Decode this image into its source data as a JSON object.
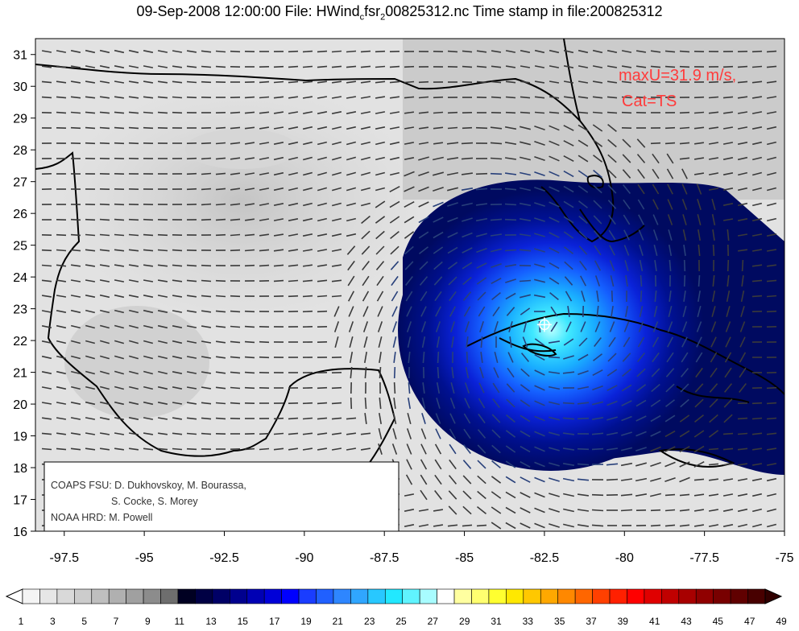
{
  "title": {
    "prefix": "09-Sep-2008 12:00:00 File: HWind",
    "sub": "c",
    "mid": "fsr",
    "sub2": "2",
    "suffix": "00825312.nc Time stamp in file:200825312"
  },
  "map": {
    "lon_ticks": [
      "-97.5",
      "-95",
      "-92.5",
      "-90",
      "-87.5",
      "-85",
      "-82.5",
      "-80",
      "-77.5",
      "-75"
    ],
    "lon_values": [
      -97.5,
      -95,
      -92.5,
      -90,
      -87.5,
      -85,
      -82.5,
      -80,
      -77.5,
      -75
    ],
    "lat_ticks": [
      "31",
      "30",
      "29",
      "28",
      "27",
      "26",
      "25",
      "24",
      "23",
      "22",
      "21",
      "20",
      "19",
      "18",
      "17",
      "16"
    ],
    "lat_values": [
      31,
      30,
      29,
      28,
      27,
      26,
      25,
      24,
      23,
      22,
      21,
      20,
      19,
      18,
      17,
      16
    ],
    "lon_range": [
      -98.4,
      -75
    ],
    "lat_range": [
      16,
      31.5
    ],
    "storm_center": {
      "lon": -82.5,
      "lat": 22.5
    },
    "stats": [
      "maxU=31.9 m/s,",
      "Cat=TS"
    ]
  },
  "credits": [
    "COAPS FSU: D. Dukhovskoy, M. Bourassa,",
    "S. Cocke, S. Morey",
    "NOAA HRD:  M. Powell"
  ],
  "colorbar": {
    "labels": [
      "1",
      "3",
      "5",
      "7",
      "9",
      "11",
      "13",
      "15",
      "17",
      "19",
      "21",
      "23",
      "25",
      "27",
      "29",
      "31",
      "33",
      "35",
      "37",
      "39",
      "41",
      "43",
      "45",
      "47",
      "49"
    ],
    "colors": [
      "#f4f4f4",
      "#e6e6e6",
      "#d9d9d9",
      "#cccccc",
      "#bfbfbf",
      "#b0b0b0",
      "#a0a0a0",
      "#8c8c8c",
      "#6e6e6e",
      "#000022",
      "#000044",
      "#000066",
      "#00008e",
      "#0000b4",
      "#0000d8",
      "#0000ff",
      "#1a3dff",
      "#2060ff",
      "#2e86ff",
      "#30a6ff",
      "#28c8ff",
      "#22e8ff",
      "#60f4ff",
      "#a8fcff",
      "#ffffff",
      "#ffffa0",
      "#ffff70",
      "#ffff30",
      "#ffe800",
      "#ffc800",
      "#ffa800",
      "#ff8800",
      "#ff6600",
      "#ff4000",
      "#ff2000",
      "#ff0000",
      "#e00000",
      "#c00000",
      "#a80000",
      "#900000",
      "#780000",
      "#600000",
      "#480000"
    ]
  }
}
